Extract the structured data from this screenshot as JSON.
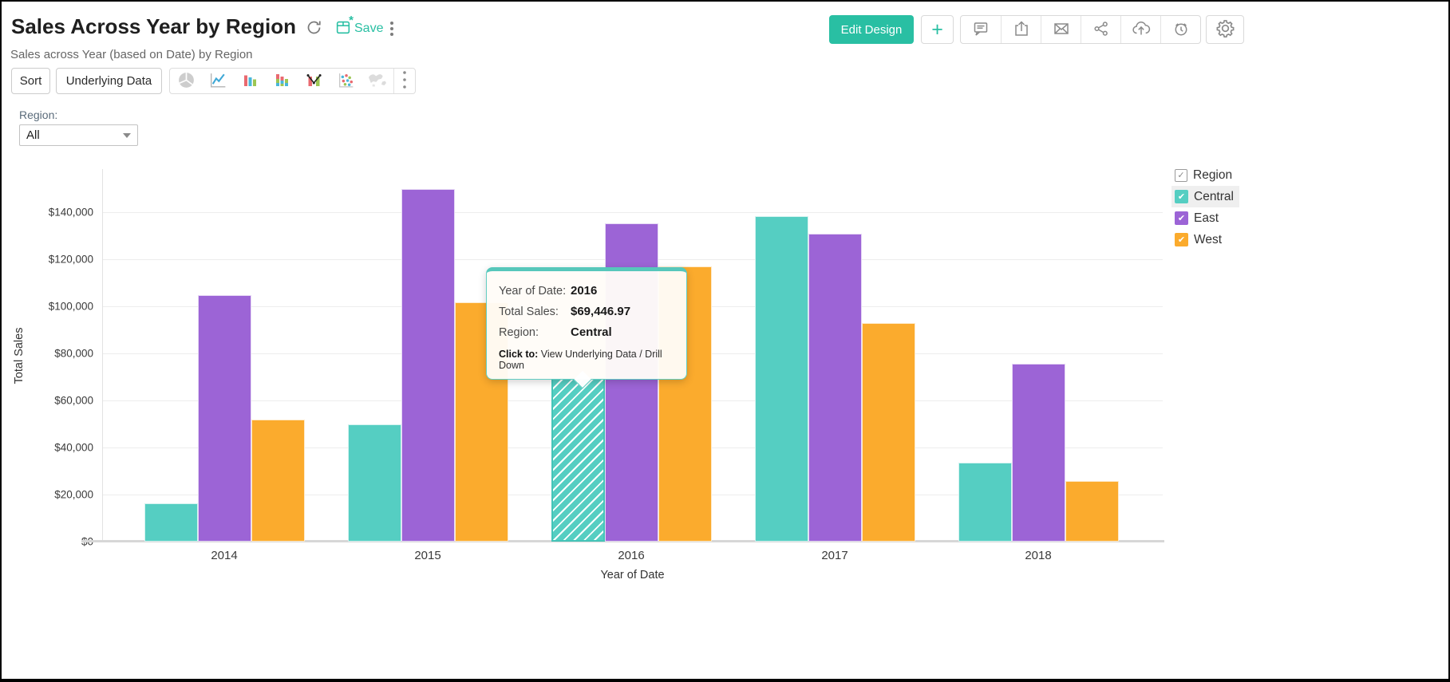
{
  "header": {
    "title": "Sales Across Year by Region",
    "subtitle": "Sales across Year (based on Date) by Region",
    "save_label": "Save",
    "edit_design_label": "Edit Design",
    "action_icons": [
      "comment",
      "export",
      "email",
      "share",
      "cloud-upload",
      "history"
    ],
    "accent_color": "#29BFA3"
  },
  "toolbar": {
    "sort_label": "Sort",
    "underlying_data_label": "Underlying Data",
    "chart_type_icons": [
      "pie",
      "line",
      "bar",
      "stacked-bar",
      "combo",
      "scatter",
      "map"
    ]
  },
  "filter": {
    "label": "Region:",
    "value": "All"
  },
  "legend": {
    "title": "Region",
    "title_checked": true,
    "items": [
      {
        "label": "Central",
        "color": "#55CEC2",
        "checked": true,
        "highlighted": true
      },
      {
        "label": "East",
        "color": "#9C64D6",
        "checked": true,
        "highlighted": false
      },
      {
        "label": "West",
        "color": "#FBAB2D",
        "checked": true,
        "highlighted": false
      }
    ]
  },
  "tooltip": {
    "rows": [
      {
        "label": "Year of Date:",
        "value": "2016"
      },
      {
        "label": "Total Sales:",
        "value": "$69,446.97"
      },
      {
        "label": "Region:",
        "value": "Central"
      }
    ],
    "footer_label": "Click to:",
    "footer_text": " View Underlying Data / Drill Down"
  },
  "chart_data": {
    "type": "bar",
    "title": "Sales Across Year by Region",
    "categories": [
      "2014",
      "2015",
      "2016",
      "2017",
      "2018"
    ],
    "series": [
      {
        "name": "Central",
        "color": "#55CEC2",
        "values": [
          16300,
          49800,
          69446.97,
          138200,
          33600
        ]
      },
      {
        "name": "East",
        "color": "#9C64D6",
        "values": [
          104800,
          149800,
          135300,
          130700,
          75500
        ]
      },
      {
        "name": "West",
        "color": "#FBAB2D",
        "values": [
          51800,
          101800,
          116800,
          93000,
          25900
        ]
      }
    ],
    "xlabel": "Year of Date",
    "ylabel": "Total Sales",
    "ylim": [
      0,
      158000
    ],
    "ytick_step": 20000,
    "ytick_max": 140000,
    "ytick_prefix": "$",
    "grid": true,
    "legend_position": "right",
    "selected_bar": {
      "category": "2016",
      "series": "Central",
      "value": "$69,446.97"
    }
  }
}
